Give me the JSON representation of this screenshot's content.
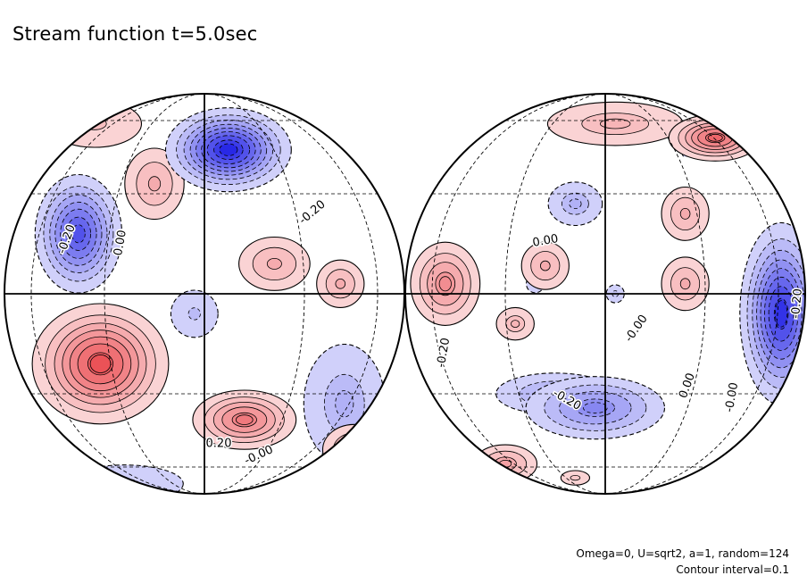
{
  "chart_data": {
    "type": "contour",
    "title": "Stream function t=5.0sec",
    "notes": [
      "Omega=0, U=sqrt2, a=1, random=124",
      "Contour interval=0.1"
    ],
    "contour_interval": 0.1,
    "colors": {
      "positive": "#e8343a",
      "negative": "#2828e6",
      "zero": "#ffffff"
    },
    "panels": [
      {
        "name": "left-hemisphere",
        "labels": [
          "-0.20",
          "0.00",
          "-0.20",
          "0.20",
          "-0.00"
        ],
        "features": [
          {
            "kind": "negative",
            "peak": -0.9,
            "cx": 0.12,
            "cy": 0.72,
            "sx": 0.15,
            "sy": 0.1
          },
          {
            "kind": "negative",
            "peak": -0.7,
            "cx": -0.63,
            "cy": 0.3,
            "sx": 0.11,
            "sy": 0.15
          },
          {
            "kind": "negative",
            "peak": -0.2,
            "cx": -0.05,
            "cy": -0.1,
            "sx": 0.1,
            "sy": 0.1
          },
          {
            "kind": "negative",
            "peak": -0.25,
            "cx": 0.7,
            "cy": -0.55,
            "sx": 0.15,
            "sy": 0.22
          },
          {
            "kind": "negative",
            "peak": -0.2,
            "cx": -0.4,
            "cy": -0.95,
            "sx": 0.25,
            "sy": 0.08
          },
          {
            "kind": "positive",
            "peak": 0.75,
            "cx": -0.52,
            "cy": -0.35,
            "sx": 0.17,
            "sy": 0.15
          },
          {
            "kind": "positive",
            "peak": 0.55,
            "cx": 0.2,
            "cy": -0.63,
            "sx": 0.14,
            "sy": 0.08
          },
          {
            "kind": "positive",
            "peak": 0.3,
            "cx": -0.25,
            "cy": 0.55,
            "sx": 0.1,
            "sy": 0.12
          },
          {
            "kind": "positive",
            "peak": 0.3,
            "cx": 0.35,
            "cy": 0.15,
            "sx": 0.12,
            "sy": 0.09
          },
          {
            "kind": "positive",
            "peak": 0.3,
            "cx": 0.68,
            "cy": 0.05,
            "sx": 0.08,
            "sy": 0.08
          },
          {
            "kind": "positive",
            "peak": 0.2,
            "cx": -0.55,
            "cy": 0.85,
            "sx": 0.2,
            "sy": 0.1
          },
          {
            "kind": "positive",
            "peak": 0.35,
            "cx": 0.75,
            "cy": -0.78,
            "sx": 0.1,
            "sy": 0.08
          }
        ]
      },
      {
        "name": "right-hemisphere",
        "labels": [
          "0.00",
          "-0.00",
          "-0.20",
          "0.00",
          "-0.00",
          "-0.20",
          "-0.20"
        ],
        "features": [
          {
            "kind": "negative",
            "peak": -0.85,
            "cx": 0.88,
            "cy": -0.1,
            "sx": 0.1,
            "sy": 0.22
          },
          {
            "kind": "negative",
            "peak": -0.45,
            "cx": -0.05,
            "cy": -0.57,
            "sx": 0.2,
            "sy": 0.09
          },
          {
            "kind": "negative",
            "peak": -0.3,
            "cx": -0.25,
            "cy": -0.5,
            "sx": 0.2,
            "sy": 0.07
          },
          {
            "kind": "negative",
            "peak": -0.25,
            "cx": -0.15,
            "cy": 0.45,
            "sx": 0.1,
            "sy": 0.08
          },
          {
            "kind": "negative",
            "peak": -0.15,
            "cx": 0.05,
            "cy": 0.0,
            "sx": 0.05,
            "sy": 0.05
          },
          {
            "kind": "negative",
            "peak": -0.15,
            "cx": -0.35,
            "cy": 0.05,
            "sx": 0.05,
            "sy": 0.05
          },
          {
            "kind": "negative",
            "peak": -0.1,
            "cx": 0.4,
            "cy": 0.7,
            "sx": 0.05,
            "sy": 0.05
          },
          {
            "kind": "positive",
            "peak": 0.65,
            "cx": 0.55,
            "cy": 0.78,
            "sx": 0.12,
            "sy": 0.06
          },
          {
            "kind": "positive",
            "peak": 0.25,
            "cx": 0.05,
            "cy": 0.85,
            "sx": 0.25,
            "sy": 0.08
          },
          {
            "kind": "positive",
            "peak": 0.45,
            "cx": -0.8,
            "cy": 0.05,
            "sx": 0.1,
            "sy": 0.12
          },
          {
            "kind": "positive",
            "peak": 0.3,
            "cx": -0.3,
            "cy": 0.14,
            "sx": 0.08,
            "sy": 0.08
          },
          {
            "kind": "positive",
            "peak": 0.25,
            "cx": -0.45,
            "cy": -0.15,
            "sx": 0.07,
            "sy": 0.06
          },
          {
            "kind": "positive",
            "peak": 0.3,
            "cx": 0.4,
            "cy": 0.4,
            "sx": 0.08,
            "sy": 0.09
          },
          {
            "kind": "positive",
            "peak": 0.3,
            "cx": 0.4,
            "cy": 0.05,
            "sx": 0.08,
            "sy": 0.09
          },
          {
            "kind": "positive",
            "peak": 0.35,
            "cx": -0.5,
            "cy": -0.85,
            "sx": 0.1,
            "sy": 0.06
          },
          {
            "kind": "positive",
            "peak": 0.15,
            "cx": -0.15,
            "cy": -0.92,
            "sx": 0.08,
            "sy": 0.04
          }
        ]
      }
    ]
  }
}
